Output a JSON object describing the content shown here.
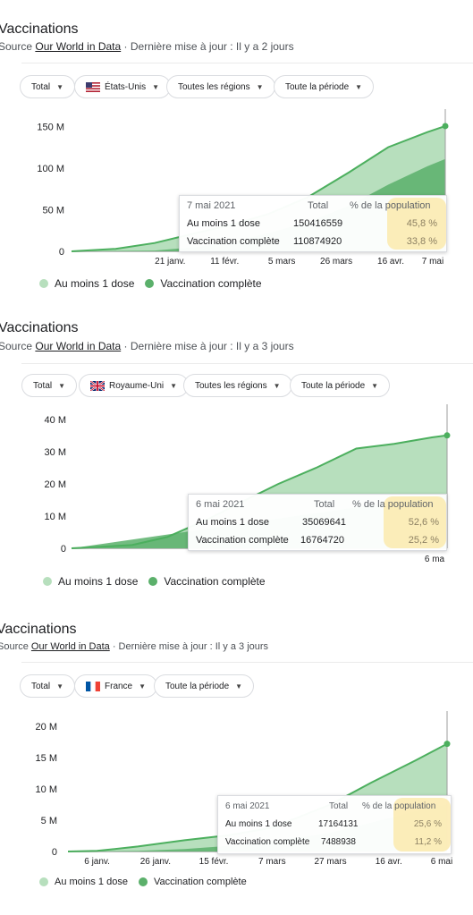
{
  "panels": [
    {
      "title": "Vaccinations",
      "source_prefix": "Source",
      "source_link": "Our World in Data",
      "updated": "· Dernière mise à jour : Il y a 2 jours",
      "chips": [
        "Total",
        "États-Unis",
        "Toutes les régions",
        "Toute la période"
      ],
      "tooltip": {
        "date": "7 mai 2021",
        "col_total": "Total",
        "col_pct": "% de la population",
        "rows": [
          {
            "label": "Au moins 1 dose",
            "total": "150416559",
            "pct": "45,8 %"
          },
          {
            "label": "Vaccination complète",
            "total": "110874920",
            "pct": "33,8 %"
          }
        ]
      },
      "legend": [
        "Au moins 1 dose",
        "Vaccination complète"
      ]
    },
    {
      "title": "Vaccinations",
      "source_prefix": "Source",
      "source_link": "Our World in Data",
      "updated": "· Dernière mise à jour : Il y a 3 jours",
      "chips": [
        "Total",
        "Royaume-Uni",
        "Toutes les régions",
        "Toute la période"
      ],
      "tooltip": {
        "date": "6 mai 2021",
        "col_total": "Total",
        "col_pct": "% de la population",
        "rows": [
          {
            "label": "Au moins 1 dose",
            "total": "35069641",
            "pct": "52,6 %"
          },
          {
            "label": "Vaccination complète",
            "total": "16764720",
            "pct": "25,2 %"
          }
        ]
      },
      "legend": [
        "Au moins 1 dose",
        "Vaccination complète"
      ]
    },
    {
      "title": "Vaccinations",
      "source_prefix": "Source",
      "source_link": "Our World in Data",
      "updated": "· Dernière mise à jour : Il y a 3 jours",
      "chips": [
        "Total",
        "France",
        "Toute la période"
      ],
      "tooltip": {
        "date": "6 mai 2021",
        "col_total": "Total",
        "col_pct": "% de la population",
        "rows": [
          {
            "label": "Au moins 1 dose",
            "total": "17164131",
            "pct": "25,6 %"
          },
          {
            "label": "Vaccination complète",
            "total": "7488938",
            "pct": "11,2 %"
          }
        ]
      },
      "legend": [
        "Au moins 1 dose",
        "Vaccination complète"
      ]
    }
  ],
  "colors": {
    "first_dose": "#b7dfbd",
    "complete": "#5bb06b",
    "line": "#4caf5e",
    "highlight": "#fbe7a3"
  },
  "chart_data": [
    {
      "type": "area",
      "title": "",
      "ytick_labels": [
        "0",
        "50 M",
        "100 M",
        "150 M"
      ],
      "yticks": [
        0,
        50,
        100,
        150
      ],
      "ylim": [
        0,
        160
      ],
      "xtick_labels": [
        "21 janv.",
        "11 févr.",
        "5 mars",
        "26 mars",
        "16 avr.",
        "7 mai"
      ],
      "xlim": [
        "2020-12-14",
        "2021-05-07"
      ],
      "xticks": [
        "2021-01-21",
        "2021-02-11",
        "2021-03-05",
        "2021-03-26",
        "2021-04-16",
        "2021-05-07"
      ],
      "grid": false,
      "legend_position": "bottom-left",
      "series": [
        {
          "name": "Au moins 1 dose",
          "unit": "M",
          "x": [
            "2020-12-14",
            "2020-12-31",
            "2021-01-15",
            "2021-01-31",
            "2021-02-15",
            "2021-02-28",
            "2021-03-15",
            "2021-03-31",
            "2021-04-15",
            "2021-04-30",
            "2021-05-07"
          ],
          "values": [
            0,
            3,
            10,
            22,
            33,
            45,
            65,
            95,
            125,
            143,
            150.4
          ]
        },
        {
          "name": "Vaccination complète",
          "unit": "M",
          "x": [
            "2020-12-14",
            "2021-01-15",
            "2021-01-31",
            "2021-02-15",
            "2021-02-28",
            "2021-03-15",
            "2021-03-31",
            "2021-04-15",
            "2021-04-30",
            "2021-05-07"
          ],
          "values": [
            0,
            1,
            5,
            12,
            22,
            35,
            55,
            80,
            102,
            110.9
          ]
        }
      ]
    },
    {
      "type": "area",
      "title": "",
      "ytick_labels": [
        "0",
        "10 M",
        "20 M",
        "30 M",
        "40 M"
      ],
      "yticks": [
        0,
        10,
        20,
        30,
        40
      ],
      "ylim": [
        0,
        42
      ],
      "xtick_labels": [
        "6 ma"
      ],
      "xlim": [
        "2020-12-08",
        "2021-05-06"
      ],
      "xticks": [
        "2021-05-06"
      ],
      "grid": false,
      "legend_position": "bottom-left",
      "series": [
        {
          "name": "Au moins 1 dose",
          "unit": "M",
          "x": [
            "2020-12-08",
            "2020-12-20",
            "2021-01-01",
            "2021-01-15",
            "2021-01-31",
            "2021-02-15",
            "2021-02-28",
            "2021-03-15",
            "2021-03-31",
            "2021-04-15",
            "2021-04-30",
            "2021-05-06"
          ],
          "values": [
            0,
            0.5,
            1,
            3.5,
            9,
            15,
            20,
            25,
            31,
            32.5,
            34.5,
            35.1
          ]
        },
        {
          "name": "Vaccination complète",
          "unit": "M",
          "x": [
            "2020-12-08",
            "2021-05-06"
          ],
          "values": [
            0,
            16.8
          ]
        }
      ]
    },
    {
      "type": "area",
      "title": "",
      "ytick_labels": [
        "0",
        "5 M",
        "10 M",
        "15 M",
        "20 M"
      ],
      "yticks": [
        0,
        5,
        10,
        15,
        20
      ],
      "ylim": [
        0,
        21
      ],
      "xtick_labels": [
        "6 janv.",
        "26 janv.",
        "15 févr.",
        "7 mars",
        "27 mars",
        "16 avr.",
        "6 mai"
      ],
      "xlim": [
        "2020-12-27",
        "2021-05-06"
      ],
      "xticks": [
        "2021-01-06",
        "2021-01-26",
        "2021-02-15",
        "2021-03-07",
        "2021-03-27",
        "2021-04-16",
        "2021-05-06"
      ],
      "grid": false,
      "legend_position": "bottom-left",
      "series": [
        {
          "name": "Au moins 1 dose",
          "unit": "M",
          "x": [
            "2020-12-27",
            "2021-01-06",
            "2021-01-20",
            "2021-02-05",
            "2021-02-20",
            "2021-03-07",
            "2021-03-27",
            "2021-04-10",
            "2021-04-25",
            "2021-05-06"
          ],
          "values": [
            0,
            0.1,
            0.8,
            1.8,
            2.6,
            3.8,
            7.5,
            11,
            14.5,
            17.2
          ]
        },
        {
          "name": "Vaccination complète",
          "unit": "M",
          "x": [
            "2020-12-27",
            "2021-01-20",
            "2021-02-05",
            "2021-02-20",
            "2021-03-07",
            "2021-03-27",
            "2021-04-10",
            "2021-04-25",
            "2021-05-06"
          ],
          "values": [
            0,
            0.1,
            0.4,
            0.9,
            1.6,
            3.0,
            4.6,
            6.4,
            7.5
          ]
        }
      ]
    }
  ]
}
